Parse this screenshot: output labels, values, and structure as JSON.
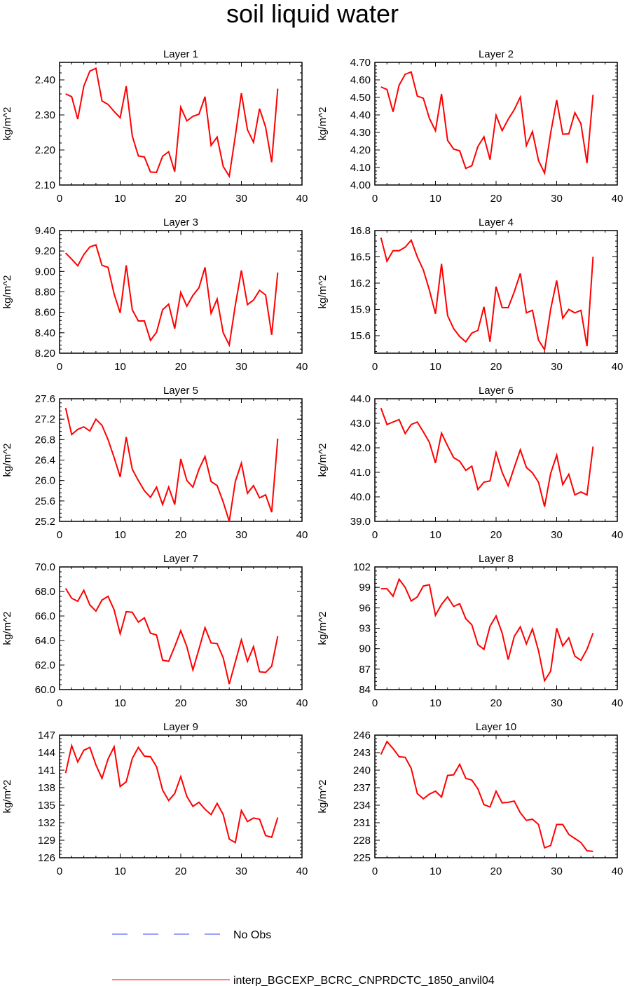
{
  "title": "soil liquid water",
  "legend": {
    "obs_label": "No Obs",
    "obs_color": "#3344ff",
    "model_label": "interp_BGCEXP_BCRC_CNPRDCTC_1850_anvil04",
    "model_color": "#ff0000"
  },
  "chart_data": [
    {
      "type": "line",
      "title": "Layer 1",
      "ylabel": "kg/m^2",
      "xlim": [
        0,
        40
      ],
      "ylim": [
        2.1,
        2.45
      ],
      "xticks": [
        "0",
        "10",
        "20",
        "30",
        "40"
      ],
      "yticks": [
        "2.10",
        "2.20",
        "2.30",
        "2.40"
      ],
      "x": [
        1,
        2,
        3,
        4,
        5,
        6,
        7,
        8,
        9,
        10,
        11,
        12,
        13,
        14,
        15,
        16,
        17,
        18,
        19,
        20,
        21,
        22,
        23,
        24,
        25,
        26,
        27,
        28,
        29,
        30,
        31,
        32,
        33,
        34,
        35,
        36
      ],
      "series": [
        {
          "values": [
            2.36,
            2.352,
            2.288,
            2.382,
            2.425,
            2.433,
            2.34,
            2.33,
            2.31,
            2.292,
            2.382,
            2.24,
            2.183,
            2.18,
            2.137,
            2.136,
            2.182,
            2.195,
            2.138,
            2.322,
            2.283,
            2.296,
            2.302,
            2.352,
            2.213,
            2.237,
            2.153,
            2.125,
            2.24,
            2.362,
            2.258,
            2.222,
            2.318,
            2.265,
            2.165,
            2.375
          ]
        }
      ]
    },
    {
      "type": "line",
      "title": "Layer 2",
      "ylabel": "kg/m^2",
      "xlim": [
        0,
        40
      ],
      "ylim": [
        4.0,
        4.7
      ],
      "xticks": [
        "0",
        "10",
        "20",
        "30",
        "40"
      ],
      "yticks": [
        "4.00",
        "4.10",
        "4.20",
        "4.30",
        "4.40",
        "4.50",
        "4.60",
        "4.70"
      ],
      "x": [
        1,
        2,
        3,
        4,
        5,
        6,
        7,
        8,
        9,
        10,
        11,
        12,
        13,
        14,
        15,
        16,
        17,
        18,
        19,
        20,
        21,
        22,
        23,
        24,
        25,
        26,
        27,
        28,
        29,
        30,
        31,
        32,
        33,
        34,
        35,
        36
      ],
      "series": [
        {
          "values": [
            4.56,
            4.545,
            4.418,
            4.57,
            4.632,
            4.645,
            4.508,
            4.495,
            4.38,
            4.31,
            4.52,
            4.255,
            4.205,
            4.195,
            4.095,
            4.11,
            4.22,
            4.275,
            4.145,
            4.398,
            4.31,
            4.375,
            4.43,
            4.502,
            4.225,
            4.305,
            4.14,
            4.068,
            4.295,
            4.485,
            4.29,
            4.292,
            4.413,
            4.35,
            4.125,
            4.515
          ]
        }
      ]
    },
    {
      "type": "line",
      "title": "Layer 3",
      "ylabel": "kg/m^2",
      "xlim": [
        0,
        40
      ],
      "ylim": [
        8.2,
        9.4
      ],
      "xticks": [
        "0",
        "10",
        "20",
        "30",
        "40"
      ],
      "yticks": [
        "8.20",
        "8.40",
        "8.60",
        "8.80",
        "9.00",
        "9.20",
        "9.40"
      ],
      "x": [
        1,
        2,
        3,
        4,
        5,
        6,
        7,
        8,
        9,
        10,
        11,
        12,
        13,
        14,
        15,
        16,
        17,
        18,
        19,
        20,
        21,
        22,
        23,
        24,
        25,
        26,
        27,
        28,
        29,
        30,
        31,
        32,
        33,
        34,
        35,
        36
      ],
      "series": [
        {
          "values": [
            9.18,
            9.12,
            9.055,
            9.165,
            9.24,
            9.26,
            9.06,
            9.04,
            8.78,
            8.595,
            9.06,
            8.625,
            8.515,
            8.515,
            8.325,
            8.405,
            8.625,
            8.68,
            8.44,
            8.795,
            8.66,
            8.765,
            8.84,
            9.04,
            8.59,
            8.73,
            8.4,
            8.28,
            8.67,
            9.01,
            8.675,
            8.72,
            8.815,
            8.77,
            8.38,
            8.99
          ]
        }
      ]
    },
    {
      "type": "line",
      "title": "Layer 4",
      "ylabel": "kg/m^2",
      "xlim": [
        0,
        40
      ],
      "ylim": [
        15.4,
        16.8
      ],
      "xticks": [
        "0",
        "10",
        "20",
        "30",
        "40"
      ],
      "yticks": [
        "15.6",
        "15.9",
        "16.2",
        "16.5",
        "16.8"
      ],
      "x": [
        1,
        2,
        3,
        4,
        5,
        6,
        7,
        8,
        9,
        10,
        11,
        12,
        13,
        14,
        15,
        16,
        17,
        18,
        19,
        20,
        21,
        22,
        23,
        24,
        25,
        26,
        27,
        28,
        29,
        30,
        31,
        32,
        33,
        34,
        35,
        36
      ],
      "series": [
        {
          "values": [
            16.72,
            16.45,
            16.57,
            16.57,
            16.61,
            16.69,
            16.5,
            16.35,
            16.12,
            15.85,
            16.42,
            15.83,
            15.68,
            15.59,
            15.53,
            15.63,
            15.66,
            15.93,
            15.53,
            16.16,
            15.92,
            15.92,
            16.1,
            16.31,
            15.86,
            15.89,
            15.55,
            15.44,
            15.9,
            16.23,
            15.8,
            15.9,
            15.86,
            15.89,
            15.48,
            16.5
          ]
        }
      ]
    },
    {
      "type": "line",
      "title": "Layer 5",
      "ylabel": "kg/m^2",
      "xlim": [
        0,
        40
      ],
      "ylim": [
        25.2,
        27.6
      ],
      "xticks": [
        "0",
        "10",
        "20",
        "30",
        "40"
      ],
      "yticks": [
        "25.2",
        "25.6",
        "26.0",
        "26.4",
        "26.8",
        "27.2",
        "27.6"
      ],
      "x": [
        1,
        2,
        3,
        4,
        5,
        6,
        7,
        8,
        9,
        10,
        11,
        12,
        13,
        14,
        15,
        16,
        17,
        18,
        19,
        20,
        21,
        22,
        23,
        24,
        25,
        26,
        27,
        28,
        29,
        30,
        31,
        32,
        33,
        34,
        35,
        36
      ],
      "series": [
        {
          "values": [
            27.42,
            26.9,
            27.0,
            27.05,
            26.97,
            27.2,
            27.08,
            26.8,
            26.45,
            26.07,
            26.85,
            26.22,
            26.0,
            25.8,
            25.67,
            25.87,
            25.53,
            25.87,
            25.53,
            26.42,
            26.0,
            25.87,
            26.22,
            26.47,
            25.98,
            25.9,
            25.58,
            25.2,
            25.98,
            26.34,
            25.75,
            25.9,
            25.66,
            25.72,
            25.38,
            26.82
          ]
        }
      ]
    },
    {
      "type": "line",
      "title": "Layer 6",
      "ylabel": "kg/m^2",
      "xlim": [
        0,
        40
      ],
      "ylim": [
        39.0,
        44.0
      ],
      "xticks": [
        "0",
        "10",
        "20",
        "30",
        "40"
      ],
      "yticks": [
        "39.0",
        "40.0",
        "41.0",
        "42.0",
        "43.0",
        "44.0"
      ],
      "x": [
        1,
        2,
        3,
        4,
        5,
        6,
        7,
        8,
        9,
        10,
        11,
        12,
        13,
        14,
        15,
        16,
        17,
        18,
        19,
        20,
        21,
        22,
        23,
        24,
        25,
        26,
        27,
        28,
        29,
        30,
        31,
        32,
        33,
        34,
        35,
        36
      ],
      "series": [
        {
          "values": [
            43.62,
            42.95,
            43.05,
            43.15,
            42.58,
            42.95,
            43.05,
            42.65,
            42.22,
            41.38,
            42.6,
            42.08,
            41.6,
            41.45,
            41.08,
            41.25,
            40.3,
            40.6,
            40.65,
            41.8,
            41.0,
            40.45,
            41.2,
            41.92,
            41.2,
            40.98,
            40.6,
            39.6,
            40.95,
            41.7,
            40.5,
            40.92,
            40.08,
            40.2,
            40.08,
            42.05
          ]
        }
      ]
    },
    {
      "type": "line",
      "title": "Layer 7",
      "ylabel": "kg/m^2",
      "xlim": [
        0,
        40
      ],
      "ylim": [
        60.0,
        70.0
      ],
      "xticks": [
        "0",
        "10",
        "20",
        "30",
        "40"
      ],
      "yticks": [
        "60.0",
        "62.0",
        "64.0",
        "66.0",
        "68.0",
        "70.0"
      ],
      "x": [
        1,
        2,
        3,
        4,
        5,
        6,
        7,
        8,
        9,
        10,
        11,
        12,
        13,
        14,
        15,
        16,
        17,
        18,
        19,
        20,
        21,
        22,
        23,
        24,
        25,
        26,
        27,
        28,
        29,
        30,
        31,
        32,
        33,
        34,
        35,
        36
      ],
      "series": [
        {
          "values": [
            68.25,
            67.45,
            67.2,
            68.1,
            66.9,
            66.4,
            67.3,
            67.6,
            66.5,
            64.55,
            66.35,
            66.3,
            65.5,
            65.85,
            64.6,
            64.45,
            62.4,
            62.3,
            63.5,
            64.8,
            63.5,
            61.6,
            63.3,
            65.05,
            63.8,
            63.75,
            62.6,
            60.45,
            62.25,
            64.05,
            62.3,
            63.5,
            61.45,
            61.4,
            61.9,
            64.35
          ]
        }
      ]
    },
    {
      "type": "line",
      "title": "Layer 8",
      "ylabel": "kg/m^2",
      "xlim": [
        0,
        40
      ],
      "ylim": [
        84,
        102
      ],
      "xticks": [
        "0",
        "10",
        "20",
        "30",
        "40"
      ],
      "yticks": [
        "84",
        "87",
        "90",
        "93",
        "96",
        "99",
        "102"
      ],
      "x": [
        1,
        2,
        3,
        4,
        5,
        6,
        7,
        8,
        9,
        10,
        11,
        12,
        13,
        14,
        15,
        16,
        17,
        18,
        19,
        20,
        21,
        22,
        23,
        24,
        25,
        26,
        27,
        28,
        29,
        30,
        31,
        32,
        33,
        34,
        35,
        36
      ],
      "series": [
        {
          "values": [
            98.8,
            98.8,
            97.7,
            100.2,
            99.0,
            97.0,
            97.6,
            99.2,
            99.4,
            94.9,
            96.5,
            97.6,
            96.2,
            96.6,
            94.4,
            93.5,
            90.6,
            89.9,
            93.3,
            94.8,
            92.3,
            88.4,
            91.8,
            93.2,
            90.7,
            92.9,
            89.7,
            85.3,
            86.7,
            93.0,
            90.4,
            91.6,
            88.9,
            88.3,
            89.9,
            92.3
          ]
        }
      ]
    },
    {
      "type": "line",
      "title": "Layer 9",
      "ylabel": "kg/m^2",
      "xlim": [
        0,
        40
      ],
      "ylim": [
        126,
        147
      ],
      "xticks": [
        "0",
        "10",
        "20",
        "30",
        "40"
      ],
      "yticks": [
        "126",
        "129",
        "132",
        "135",
        "138",
        "141",
        "144",
        "147"
      ],
      "x": [
        1,
        2,
        3,
        4,
        5,
        6,
        7,
        8,
        9,
        10,
        11,
        12,
        13,
        14,
        15,
        16,
        17,
        18,
        19,
        20,
        21,
        22,
        23,
        24,
        25,
        26,
        27,
        28,
        29,
        30,
        31,
        32,
        33,
        34,
        35,
        36
      ],
      "series": [
        {
          "values": [
            140.5,
            145.2,
            142.4,
            144.4,
            144.9,
            141.9,
            139.6,
            142.9,
            145.0,
            138.2,
            139.0,
            143.0,
            144.9,
            143.4,
            143.3,
            141.6,
            137.6,
            135.8,
            137.0,
            139.9,
            136.5,
            134.8,
            135.5,
            134.3,
            133.4,
            135.3,
            133.4,
            129.2,
            128.6,
            134.1,
            132.2,
            132.8,
            132.6,
            129.8,
            129.5,
            132.9
          ]
        }
      ]
    },
    {
      "type": "line",
      "title": "Layer 10",
      "ylabel": "kg/m^2",
      "xlim": [
        0,
        40
      ],
      "ylim": [
        225,
        246
      ],
      "xticks": [
        "0",
        "10",
        "20",
        "30",
        "40"
      ],
      "yticks": [
        "225",
        "228",
        "231",
        "234",
        "237",
        "240",
        "243",
        "246"
      ],
      "x": [
        1,
        2,
        3,
        4,
        5,
        6,
        7,
        8,
        9,
        10,
        11,
        12,
        13,
        14,
        15,
        16,
        17,
        18,
        19,
        20,
        21,
        22,
        23,
        24,
        25,
        26,
        27,
        28,
        29,
        30,
        31,
        32,
        33,
        34,
        35,
        36
      ],
      "series": [
        {
          "values": [
            242.7,
            244.9,
            243.7,
            242.3,
            242.2,
            240.3,
            236.0,
            235.1,
            235.9,
            236.4,
            235.4,
            239.1,
            239.2,
            241.0,
            238.6,
            238.3,
            236.8,
            234.1,
            233.7,
            236.4,
            234.4,
            234.5,
            234.7,
            232.7,
            231.4,
            231.6,
            230.7,
            226.7,
            227.1,
            230.7,
            230.7,
            229.0,
            228.3,
            227.6,
            226.2,
            226.1
          ]
        }
      ]
    }
  ]
}
